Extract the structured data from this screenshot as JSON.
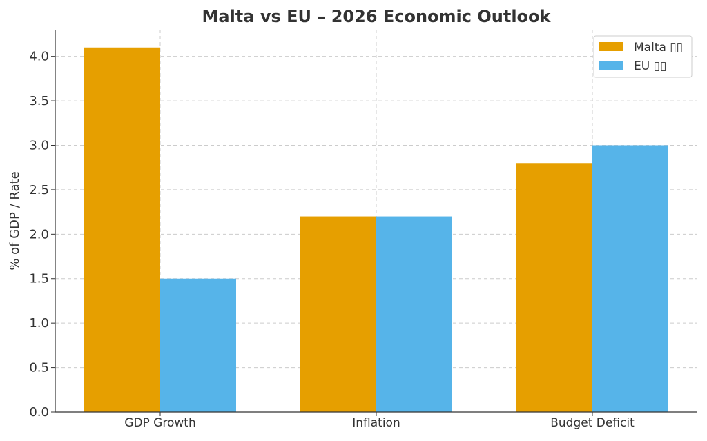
{
  "chart_data": {
    "type": "bar",
    "title": "Malta vs EU – 2026 Economic Outlook",
    "xlabel": "",
    "ylabel": "% of GDP / Rate",
    "categories": [
      "GDP Growth",
      "Inflation",
      "Budget Deficit"
    ],
    "series": [
      {
        "name": "Malta ▯▯",
        "values": [
          4.1,
          2.2,
          2.8
        ],
        "color": "#E69F00"
      },
      {
        "name": "EU ▯▯",
        "values": [
          1.5,
          2.2,
          3.0
        ],
        "color": "#56B4E9"
      }
    ],
    "ylim": [
      0,
      4.3
    ],
    "yticks": [
      "0.0",
      "0.5",
      "1.0",
      "1.5",
      "2.0",
      "2.5",
      "3.0",
      "3.5",
      "4.0"
    ],
    "grid": true,
    "legend": "top-right"
  }
}
